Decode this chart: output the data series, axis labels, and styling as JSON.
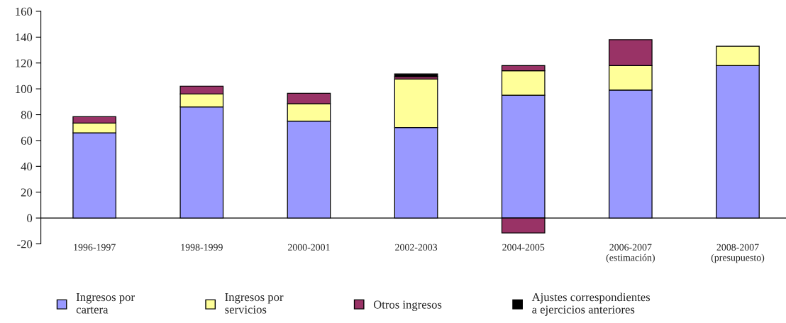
{
  "chart_data": {
    "type": "bar",
    "stacked": true,
    "categories": [
      "1996-1997",
      "1998-1999",
      "2000-2001",
      "2002-2003",
      "2004-2005",
      "2006-2007\n(estimación)",
      "2008-2007\n(presupuesto)"
    ],
    "series": [
      {
        "name": "Ingresos por\ncartera",
        "color": "#9999ff",
        "values": [
          66,
          86,
          75,
          70,
          95,
          99,
          118
        ]
      },
      {
        "name": "Ingresos por\nservicios",
        "color": "#ffff99",
        "values": [
          7.5,
          10,
          13.5,
          37.5,
          19,
          19,
          15
        ]
      },
      {
        "name": "Otros ingresos",
        "color": "#993366",
        "values": [
          5,
          6,
          8,
          2,
          4,
          20,
          null
        ]
      },
      {
        "name": "Ajustes correspondientes\na ejercicios anteriores",
        "color": "#000000",
        "colors": [
          "#000000",
          "#000000",
          "#000000",
          "#000000",
          "#993366",
          "#000000",
          "#000000"
        ],
        "values": [
          null,
          null,
          null,
          2,
          -11.5,
          null,
          null
        ]
      }
    ],
    "ylim": [
      -20,
      160
    ],
    "yticks": [
      -20,
      0,
      20,
      40,
      60,
      80,
      100,
      120,
      140,
      160
    ],
    "legend": "bottom"
  }
}
